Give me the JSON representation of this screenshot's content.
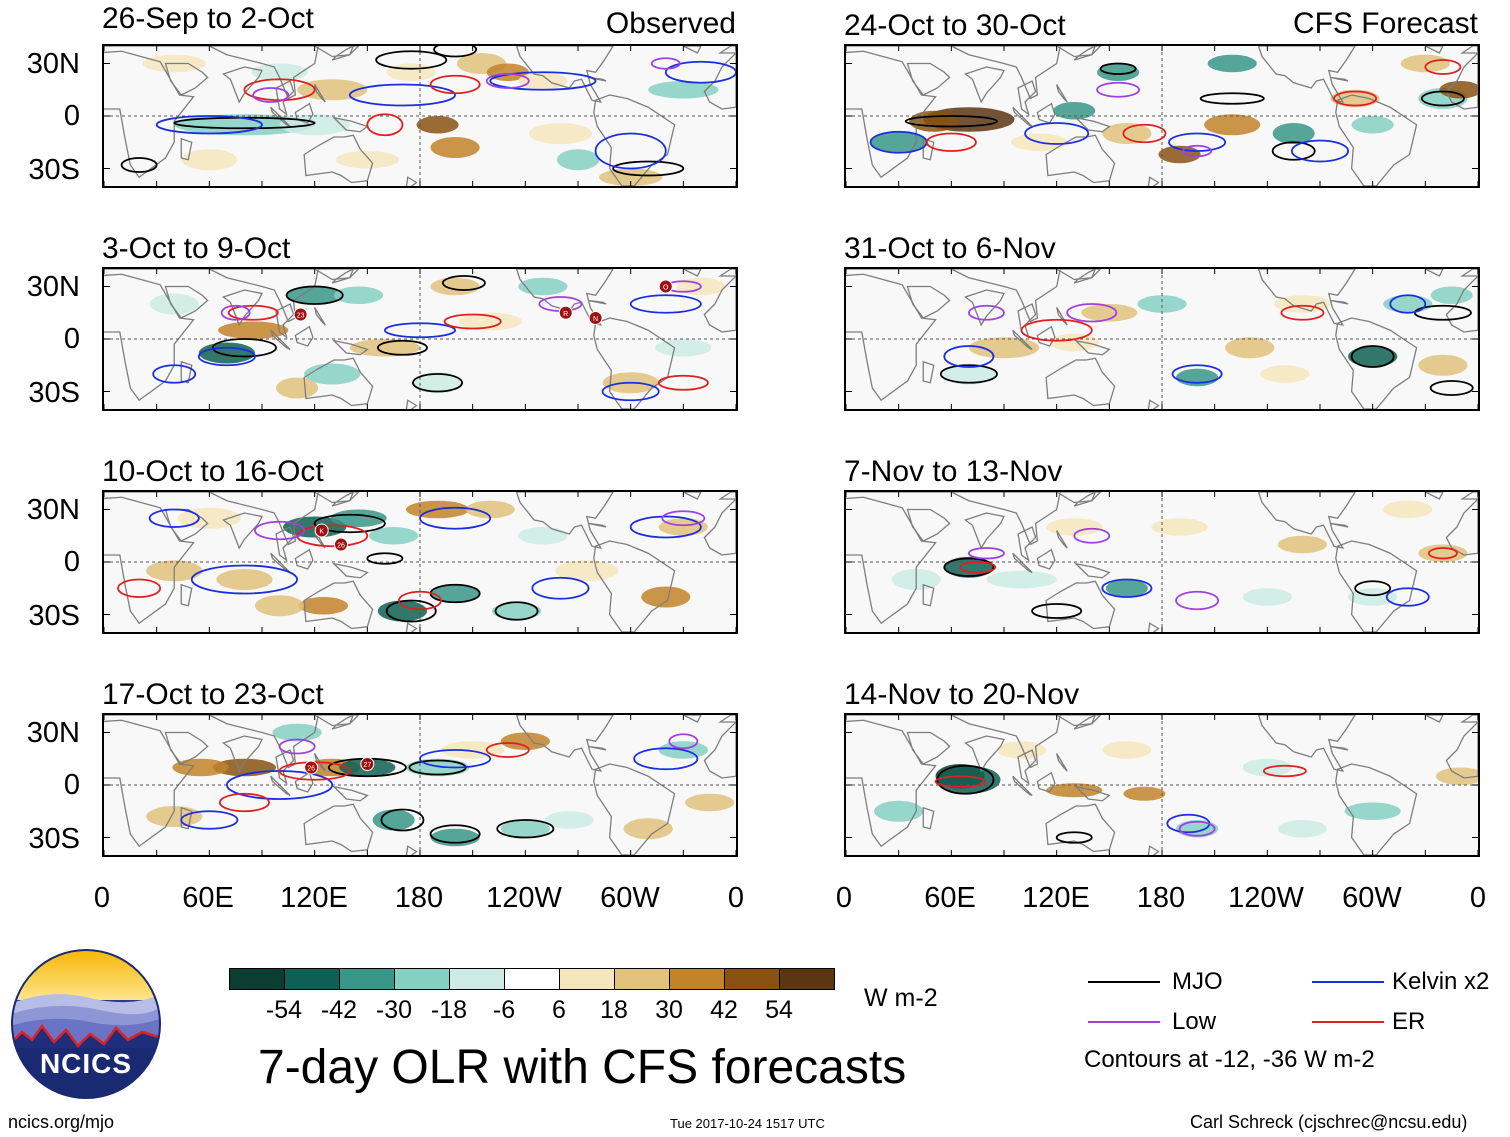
{
  "colors": {
    "MJO": "#000000",
    "Low": "#a040e0",
    "Kelvin": "#1a2ee0",
    "ER": "#e02020",
    "land": "#7d7d7d"
  },
  "panels": {
    "observed": [
      {
        "title": "26-Sep to 2-Oct",
        "tag": "Observed"
      },
      {
        "title": "3-Oct to 9-Oct"
      },
      {
        "title": "10-Oct to 16-Oct"
      },
      {
        "title": "17-Oct to 23-Oct"
      }
    ],
    "forecast": [
      {
        "title": "24-Oct to 30-Oct",
        "tag": "CFS Forecast"
      },
      {
        "title": "31-Oct to 6-Nov"
      },
      {
        "title": "7-Nov to 13-Nov"
      },
      {
        "title": "14-Nov to 20-Nov"
      }
    ]
  },
  "axes": {
    "lat_labels": [
      "30N",
      "0",
      "30S"
    ],
    "lon_labels": [
      "0",
      "60E",
      "120E",
      "180",
      "120W",
      "60W",
      "0"
    ]
  },
  "storm_markers": {
    "p2": [
      "23",
      "R",
      "N",
      "O"
    ],
    "p3": [
      "K",
      "26"
    ],
    "p4": [
      "26",
      "27"
    ]
  },
  "colorbar": {
    "colors": [
      "#0b3d33",
      "#0f5f54",
      "#3a9688",
      "#86d0c2",
      "#cdebe4",
      "#ffffff",
      "#f6e6bd",
      "#e1c27c",
      "#c2842a",
      "#8a5212",
      "#5c3610"
    ],
    "labels": [
      "-54",
      "-42",
      "-30",
      "-18",
      "-6",
      "6",
      "18",
      "30",
      "42",
      "54"
    ],
    "units": "W m-2"
  },
  "legend": {
    "mjo": "MJO",
    "low": "Low",
    "kelvin": "Kelvin x2",
    "er": "ER",
    "contours_note": "Contours at -12, -36 W m-2"
  },
  "footer": {
    "title": "7-day OLR with CFS forecasts",
    "logo_text": "NCICS",
    "url": "ncics.org/mjo",
    "timestamp": "Tue 2017-10-24 1517 UTC",
    "credit": "Carl Schreck (cjschrec@ncsu.edu)"
  }
}
